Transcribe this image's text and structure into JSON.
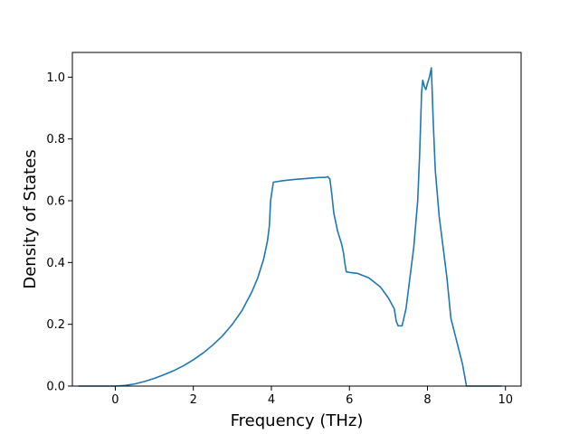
{
  "chart_data": {
    "type": "line",
    "title": "",
    "xlabel": "Frequency (THz)",
    "ylabel": "Density of States",
    "xlim": [
      -1.1,
      10.4
    ],
    "ylim": [
      0.0,
      1.08
    ],
    "xticks": [
      0,
      2,
      4,
      6,
      8,
      10
    ],
    "yticks": [
      0.0,
      0.2,
      0.4,
      0.6,
      0.8,
      1.0
    ],
    "xtick_labels": [
      "0",
      "2",
      "4",
      "6",
      "8",
      "10"
    ],
    "ytick_labels": [
      "0.0",
      "0.2",
      "0.4",
      "0.6",
      "0.8",
      "1.0"
    ],
    "grid": false,
    "series": [
      {
        "color": "#1f77b4",
        "x": [
          -0.95,
          -0.5,
          0.0,
          0.25,
          0.5,
          0.75,
          1.0,
          1.25,
          1.5,
          1.75,
          2.0,
          2.25,
          2.5,
          2.75,
          3.0,
          3.25,
          3.5,
          3.65,
          3.8,
          3.9,
          3.95,
          3.98,
          4.05,
          4.3,
          4.6,
          5.0,
          5.2,
          5.4,
          5.45,
          5.5,
          5.55,
          5.6,
          5.7,
          5.8,
          5.85,
          5.88,
          5.92,
          6.0,
          6.2,
          6.5,
          6.8,
          7.0,
          7.15,
          7.2,
          7.25,
          7.3,
          7.35,
          7.45,
          7.55,
          7.65,
          7.75,
          7.8,
          7.85,
          7.88,
          7.92,
          7.96,
          8.0,
          8.05,
          8.1,
          8.15,
          8.2,
          8.3,
          8.4,
          8.5,
          8.6,
          8.7,
          8.8,
          8.9,
          9.0,
          9.05,
          9.1,
          9.5,
          9.9
        ],
        "y": [
          0.0,
          0.0,
          0.0,
          0.002,
          0.007,
          0.015,
          0.025,
          0.037,
          0.05,
          0.066,
          0.085,
          0.107,
          0.133,
          0.163,
          0.2,
          0.245,
          0.305,
          0.35,
          0.41,
          0.47,
          0.52,
          0.6,
          0.66,
          0.665,
          0.669,
          0.673,
          0.675,
          0.676,
          0.678,
          0.67,
          0.62,
          0.56,
          0.5,
          0.46,
          0.43,
          0.4,
          0.37,
          0.368,
          0.365,
          0.35,
          0.32,
          0.285,
          0.25,
          0.21,
          0.195,
          0.195,
          0.195,
          0.25,
          0.35,
          0.45,
          0.6,
          0.75,
          0.95,
          0.99,
          0.97,
          0.96,
          0.98,
          1.0,
          1.03,
          0.85,
          0.7,
          0.55,
          0.45,
          0.35,
          0.22,
          0.17,
          0.12,
          0.07,
          0.0,
          0.0,
          0.0,
          0.0,
          0.0
        ]
      }
    ]
  }
}
